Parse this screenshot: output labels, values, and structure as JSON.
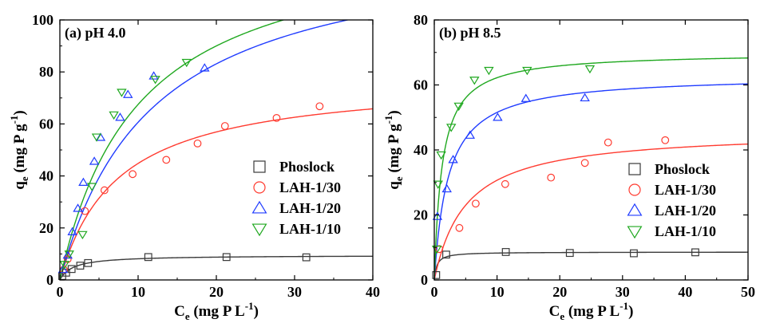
{
  "chart_data": [
    {
      "type": "scatter",
      "panel_label": "(a) pH 4.0",
      "xlabel": {
        "main": "C",
        "sub": "e",
        "rest": " (mg P L",
        "sup": "-1",
        "close": ")"
      },
      "ylabel": {
        "main": "q",
        "sub": "e",
        "rest": " (mg P g",
        "sup": "-1",
        "close": ")"
      },
      "xlim": [
        0,
        40
      ],
      "ylim": [
        0,
        100
      ],
      "xticks": [
        "0",
        "10",
        "20",
        "30",
        "40"
      ],
      "xtick_values": [
        0,
        10,
        20,
        30,
        40
      ],
      "yticks": [
        "0",
        "20",
        "40",
        "60",
        "80",
        "100"
      ],
      "ytick_values": [
        0,
        20,
        40,
        60,
        80,
        100
      ],
      "legend_position": "bottom-right",
      "series": [
        {
          "name": "Phoslock",
          "marker": "square",
          "color": "#3a3a3a",
          "x": [
            0.3,
            0.8,
            1.5,
            2.6,
            3.6,
            11.3,
            21.3,
            31.5
          ],
          "y": [
            1.5,
            2.8,
            4.2,
            5.5,
            6.5,
            8.8,
            8.8,
            8.7
          ],
          "fit": {
            "qmax": 9.5,
            "K": 0.6
          }
        },
        {
          "name": "LAH-1/30",
          "marker": "circle",
          "color": "#ff3b30",
          "x": [
            0.5,
            1.0,
            3.2,
            5.7,
            9.3,
            13.6,
            17.6,
            21.1,
            27.7,
            33.2
          ],
          "y": [
            4,
            8,
            26.5,
            34.5,
            40.7,
            46.2,
            52.5,
            59.2,
            62.3,
            66.8
          ],
          "fit": {
            "qmax": 78,
            "K": 0.135
          }
        },
        {
          "name": "LAH-1/20",
          "marker": "triangle-up",
          "color": "#1f3bff",
          "x": [
            0.4,
            1.0,
            1.6,
            2.3,
            3.0,
            4.4,
            5.2,
            7.7,
            8.7,
            12.0,
            18.5
          ],
          "y": [
            4,
            9.5,
            18.5,
            27.5,
            37.5,
            45.6,
            54.8,
            62.5,
            71.3,
            78.4,
            81.5
          ],
          "fit": {
            "qmax": 132,
            "K": 0.085
          }
        },
        {
          "name": "LAH-1/10",
          "marker": "triangle-down",
          "color": "#1fa81f",
          "x": [
            0.6,
            1.2,
            2.9,
            4.1,
            4.7,
            6.9,
            7.9,
            12.2,
            16.2
          ],
          "y": [
            6,
            10,
            17.5,
            36,
            55,
            63.5,
            72.2,
            77.2,
            83.7
          ],
          "fit": {
            "qmax": 135,
            "K": 0.1
          }
        }
      ]
    },
    {
      "type": "scatter",
      "panel_label": "(b) pH 8.5",
      "xlabel": {
        "main": "C",
        "sub": "e",
        "rest": " (mg P L",
        "sup": "-1",
        "close": ")"
      },
      "ylabel": {
        "main": "q",
        "sub": "e",
        "rest": " (mg P g",
        "sup": "-1",
        "close": ")"
      },
      "xlim": [
        0,
        50
      ],
      "ylim": [
        0,
        80
      ],
      "xticks": [
        "0",
        "10",
        "20",
        "30",
        "40",
        "50"
      ],
      "xtick_values": [
        0,
        10,
        20,
        30,
        40,
        50
      ],
      "yticks": [
        "0",
        "20",
        "40",
        "60",
        "80"
      ],
      "ytick_values": [
        0,
        20,
        40,
        60,
        80
      ],
      "legend_position": "bottom-right",
      "series": [
        {
          "name": "Phoslock",
          "marker": "square",
          "color": "#3a3a3a",
          "x": [
            0.3,
            1.9,
            11.4,
            21.6,
            31.8,
            41.6
          ],
          "y": [
            1.5,
            7.8,
            8.6,
            8.3,
            8.2,
            8.5
          ],
          "fit": {
            "qmax": 8.6,
            "K": 2.5
          }
        },
        {
          "name": "LAH-1/30",
          "marker": "circle",
          "color": "#ff3b30",
          "x": [
            0.8,
            4.0,
            6.6,
            11.3,
            18.6,
            24.0,
            27.7,
            36.8
          ],
          "y": [
            9.5,
            16,
            23.5,
            29.5,
            31.5,
            36,
            42.3,
            43
          ],
          "fit": {
            "qmax": 46,
            "K": 0.2
          }
        },
        {
          "name": "LAH-1/20",
          "marker": "triangle-up",
          "color": "#1f3bff",
          "x": [
            0.5,
            2.0,
            3.0,
            5.7,
            10.1,
            14.6,
            24.0
          ],
          "y": [
            19.5,
            28,
            37,
            44.5,
            50,
            55.8,
            56
          ],
          "fit": {
            "qmax": 63,
            "K": 0.45
          }
        },
        {
          "name": "LAH-1/10",
          "marker": "triangle-down",
          "color": "#1fa81f",
          "x": [
            0.4,
            0.6,
            1.1,
            2.7,
            3.9,
            6.4,
            8.7,
            14.8,
            24.8
          ],
          "y": [
            9.5,
            29.5,
            38.5,
            47,
            53.5,
            61.5,
            64.5,
            64.5,
            65
          ],
          "fit": {
            "qmax": 70,
            "K": 0.8
          }
        }
      ]
    }
  ]
}
